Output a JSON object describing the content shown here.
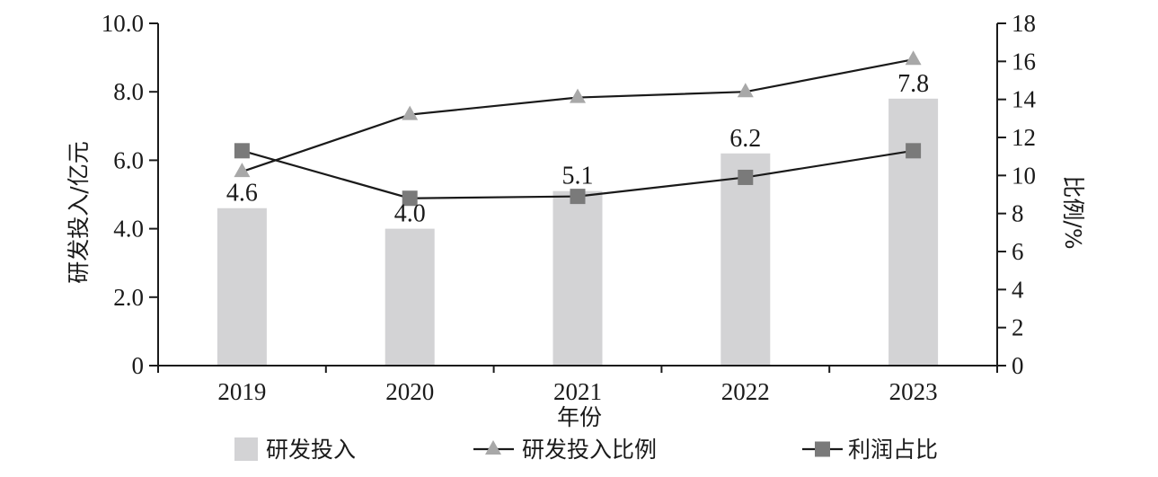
{
  "chart_data": {
    "type": "bar",
    "categories": [
      "2019",
      "2020",
      "2021",
      "2022",
      "2023"
    ],
    "bar_series": {
      "name": "研发投入",
      "values": [
        4.6,
        4.0,
        5.1,
        6.2,
        7.8
      ],
      "labels": [
        "4.6",
        "4.0",
        "5.1",
        "6.2",
        "7.8"
      ],
      "color": "#d3d3d5",
      "axis": "left"
    },
    "line_series": [
      {
        "name": "研发投入比例",
        "values": [
          10.2,
          13.2,
          14.1,
          14.4,
          16.1
        ],
        "marker": "triangle",
        "marker_color": "#a8a8a8",
        "axis": "right"
      },
      {
        "name": "利润占比",
        "values": [
          11.3,
          8.8,
          8.9,
          9.9,
          11.3
        ],
        "marker": "square",
        "marker_color": "#7a7a7a",
        "axis": "right"
      }
    ],
    "xlabel": "年份",
    "ylabel_left": "研发投入/亿元",
    "ylabel_right": "比例/%",
    "ylim_left": [
      0,
      10
    ],
    "ylim_right": [
      0,
      18
    ],
    "left_ticks": [
      "0",
      "2.0",
      "4.0",
      "6.0",
      "8.0",
      "10.0"
    ],
    "right_ticks": [
      "0",
      "2",
      "4",
      "6",
      "8",
      "10",
      "12",
      "14",
      "16",
      "18"
    ],
    "legend_position": "bottom",
    "grid": false,
    "line_color": "#1a1a1a"
  }
}
